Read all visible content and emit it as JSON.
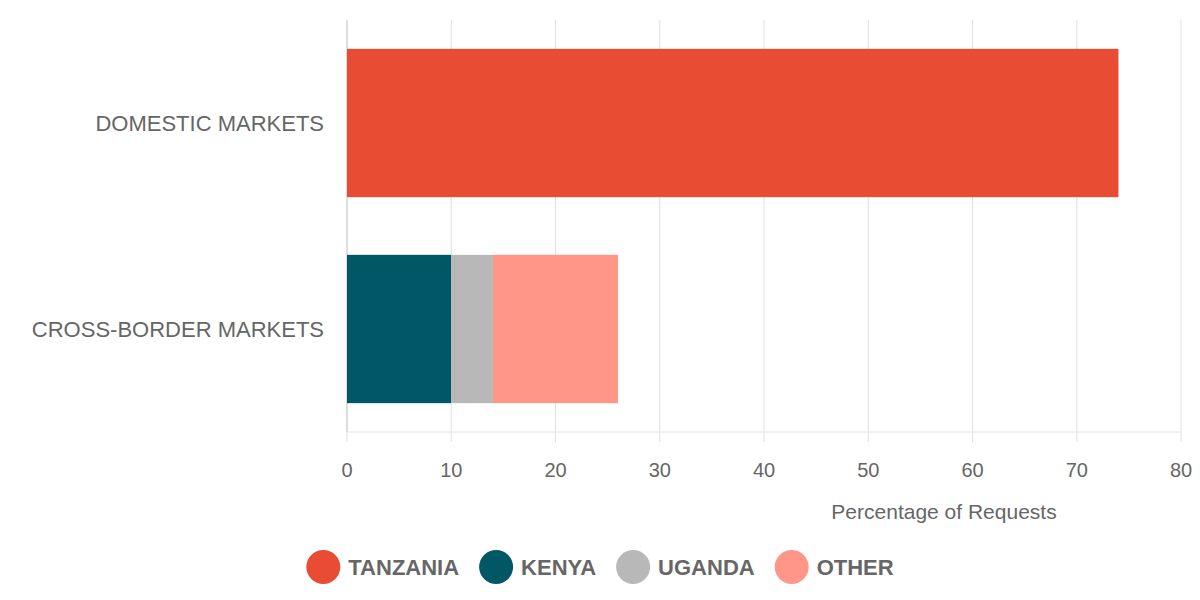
{
  "chart_data": {
    "type": "bar",
    "orientation": "horizontal",
    "stacked": true,
    "categories": [
      "DOMESTIC MARKETS",
      "CROSS-BORDER MARKETS"
    ],
    "series": [
      {
        "name": "TANZANIA",
        "color": "#e84c33",
        "values": [
          74,
          0
        ]
      },
      {
        "name": "KENYA",
        "color": "#025767",
        "values": [
          0,
          10
        ]
      },
      {
        "name": "UGANDA",
        "color": "#b8b8b8",
        "values": [
          0,
          4
        ]
      },
      {
        "name": "OTHER",
        "color": "#ff9688",
        "values": [
          0,
          12
        ]
      }
    ],
    "x_label": "Percentage of Requests",
    "xlim": [
      0,
      80
    ],
    "xticks": [
      0,
      10,
      20,
      30,
      40,
      50,
      60,
      70,
      80
    ],
    "grid": true,
    "legend": "bottom"
  }
}
